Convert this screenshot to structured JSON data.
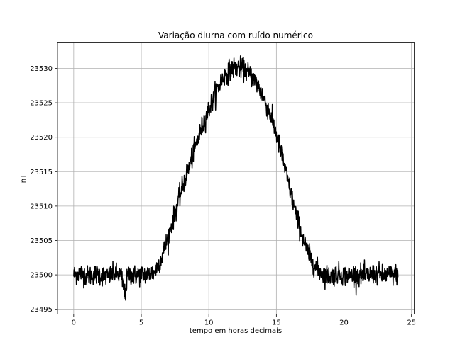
{
  "chart_data": {
    "type": "line",
    "title": "Variação diurna com ruído numérico",
    "xlabel": "tempo em horas decimais",
    "ylabel": "nT",
    "xlim": [
      -1.2,
      25.2
    ],
    "ylim": [
      23494.3,
      23533.7
    ],
    "xticks": [
      0,
      5,
      10,
      15,
      20,
      25
    ],
    "yticks": [
      23495,
      23500,
      23505,
      23510,
      23515,
      23520,
      23525,
      23530
    ],
    "grid": true,
    "legend": "none",
    "series": [
      {
        "color": "#000000",
        "x": [
          0,
          0.5,
          1,
          1.5,
          2,
          2.5,
          3,
          3.5,
          3.8,
          4,
          4.5,
          5,
          5.5,
          6,
          6.5,
          7,
          7.5,
          8,
          8.5,
          9,
          9.5,
          10,
          10.5,
          11,
          11.5,
          12,
          12.5,
          13,
          13.5,
          14,
          14.5,
          15,
          15.5,
          16,
          16.5,
          17,
          17.5,
          18,
          18.5,
          19,
          19.5,
          20,
          20.5,
          21,
          21.5,
          22,
          22.5,
          23,
          23.5,
          24
        ],
        "y": [
          23500,
          23500.3,
          23499.8,
          23500.1,
          23500,
          23499.7,
          23500.2,
          23500,
          23497,
          23500.1,
          23499.9,
          23500,
          23500.1,
          23500.4,
          23502.5,
          23505.5,
          23509,
          23512.5,
          23515.5,
          23518.5,
          23521.5,
          23524,
          23526.5,
          23528.5,
          23529.7,
          23530.2,
          23530,
          23529.2,
          23528,
          23526,
          23523.5,
          23520.5,
          23516.5,
          23512.5,
          23508.5,
          23505,
          23502.5,
          23500.8,
          23500.1,
          23499.8,
          23500.2,
          23500,
          23499.9,
          23500.1,
          23499.8,
          23500,
          23500.2,
          23499.9,
          23500,
          23500.1
        ]
      }
    ]
  }
}
